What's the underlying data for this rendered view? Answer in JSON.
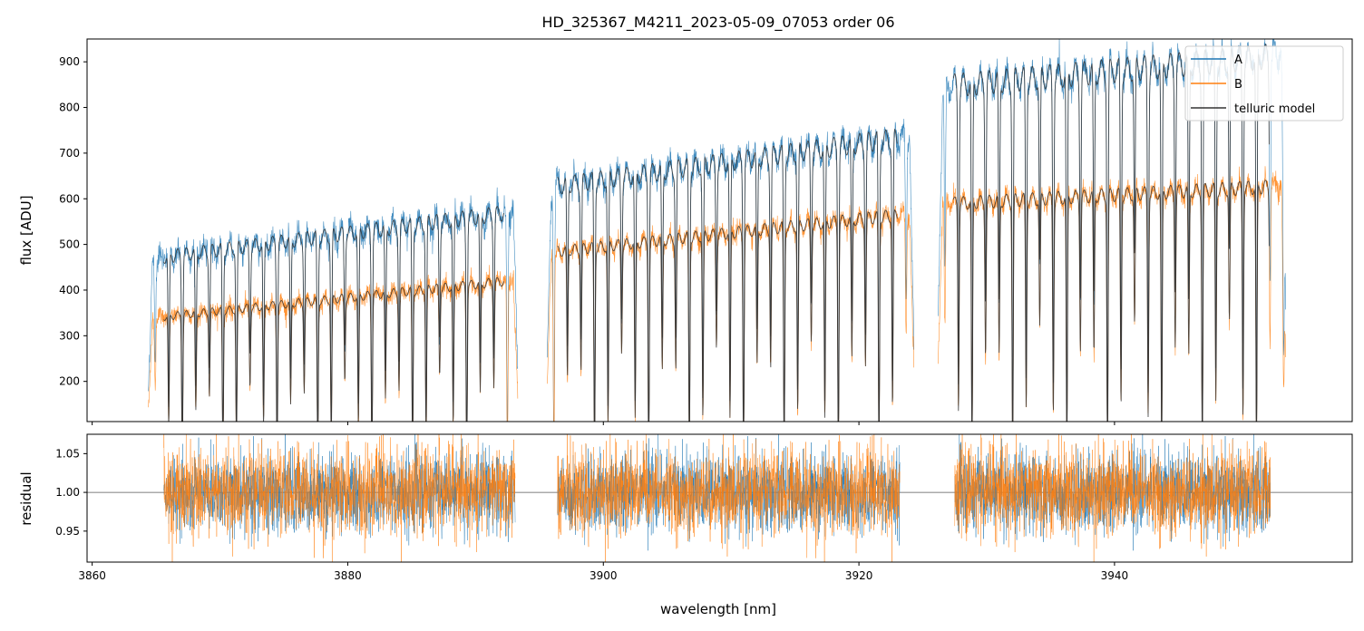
{
  "chart_data": {
    "type": "line",
    "title": "HD_325367_M4211_2023-05-09_07053  order 06",
    "xlabel": "wavelength [nm]",
    "xlim": [
      3859.6,
      3958.6
    ],
    "x_ticks": [
      3860,
      3880,
      3900,
      3920,
      3940
    ],
    "x_tick_labels": [
      "3860",
      "3880",
      "3900",
      "3920",
      "3940"
    ],
    "panels": [
      {
        "name": "flux",
        "ylabel": "flux [ADU]",
        "ylim": [
          112,
          950
        ],
        "y_ticks": [
          200,
          300,
          400,
          500,
          600,
          700,
          800,
          900
        ],
        "y_tick_labels": [
          "200",
          "300",
          "400",
          "500",
          "600",
          "700",
          "800",
          "900"
        ],
        "legend": {
          "location": "upper right",
          "entries": [
            {
              "label": "A",
              "color": "#1f77b4"
            },
            {
              "label": "B",
              "color": "#ff7f0e"
            },
            {
              "label": "telluric model",
              "color": "#333333"
            }
          ]
        },
        "segments": [
          {
            "x_start": 3864.4,
            "x_end": 3893.3,
            "line_spacing": 1.06,
            "A_continuum": [
              468,
              572
            ],
            "B_continuum": [
              338,
              422
            ],
            "model_start": 3865.6,
            "model_end": 3892.2
          },
          {
            "x_start": 3895.6,
            "x_end": 3924.3,
            "line_spacing": 1.06,
            "A_continuum": [
              625,
              738
            ],
            "B_continuum": [
              482,
              568
            ],
            "model_start": 3896.4,
            "model_end": 3923.0
          },
          {
            "x_start": 3926.2,
            "x_end": 3953.4,
            "line_spacing": 1.06,
            "A_continuum": [
              845,
              915
            ],
            "B_continuum": [
              588,
              628
            ],
            "model_start": 3927.4,
            "model_end": 3952.1
          }
        ],
        "series": [
          {
            "name": "A",
            "color": "#1f77b4"
          },
          {
            "name": "B",
            "color": "#ff7f0e"
          },
          {
            "name": "telluric model",
            "color": "#333333"
          }
        ]
      },
      {
        "name": "residual",
        "ylabel": "residual",
        "ylim": [
          0.91,
          1.075
        ],
        "y_ticks": [
          0.95,
          1.0,
          1.05
        ],
        "y_tick_labels": [
          "0.95",
          "1.00",
          "1.05"
        ],
        "reference_line": 1.0,
        "segments": [
          {
            "x_start": 3865.6,
            "x_end": 3893.1
          },
          {
            "x_start": 3896.4,
            "x_end": 3923.2
          },
          {
            "x_start": 3927.5,
            "x_end": 3952.2
          }
        ],
        "noise_sigma": 0.025,
        "series": [
          {
            "name": "A",
            "color": "#1f77b4"
          },
          {
            "name": "B",
            "color": "#ff7f0e"
          }
        ]
      }
    ]
  }
}
